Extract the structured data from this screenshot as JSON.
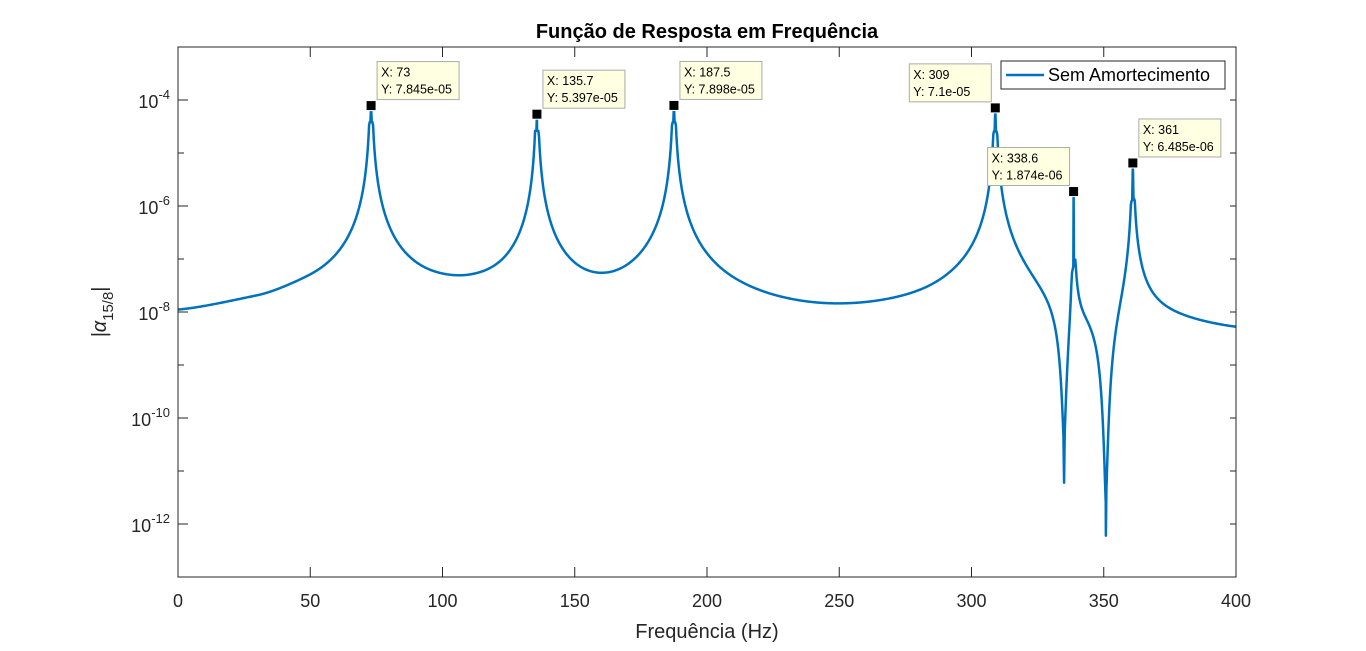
{
  "chart_data": {
    "type": "line",
    "title": "Função de Resposta em Frequência",
    "xlabel": "Frequência (Hz)",
    "ylabel": "|α15/8|",
    "ylabel_base": "|α",
    "ylabel_sub": "15/8",
    "ylabel_end": "|",
    "xscale": "linear",
    "yscale": "log",
    "xlim": [
      0,
      400
    ],
    "ylim_log10": [
      -13,
      -3
    ],
    "x_ticks": [
      0,
      50,
      100,
      150,
      200,
      250,
      300,
      350,
      400
    ],
    "y_ticks": [
      {
        "value": 1e-12,
        "base": "10",
        "exp": "-12"
      },
      {
        "value": 1e-10,
        "base": "10",
        "exp": "-10"
      },
      {
        "value": 1e-08,
        "base": "10",
        "exp": "-8"
      },
      {
        "value": 1e-06,
        "base": "10",
        "exp": "-6"
      },
      {
        "value": 0.0001,
        "base": "10",
        "exp": "-4"
      }
    ],
    "grid": false,
    "legend_position": "top-right",
    "series": [
      {
        "name": "Sem Amortecimento",
        "color": "#0072BD",
        "resonances": [
          {
            "x": 73,
            "y": 7.845e-05,
            "width": 0.7
          },
          {
            "x": 135.7,
            "y": 5.397e-05,
            "width": 0.7
          },
          {
            "x": 187.5,
            "y": 7.898e-05,
            "width": 0.7
          },
          {
            "x": 309,
            "y": 7.1e-05,
            "width": 0.7
          },
          {
            "x": 338.6,
            "y": 1.874e-06,
            "width": 0.7
          },
          {
            "x": 361,
            "y": 6.485e-06,
            "width": 0.7
          }
        ],
        "antiresonances": [
          {
            "x": 335,
            "y": 6e-12
          },
          {
            "x": 350.8,
            "y": 6e-13
          }
        ],
        "baseline": [
          {
            "x": 0,
            "y": 6.2e-09
          },
          {
            "x": 30,
            "y": 8.5e-09
          },
          {
            "x": 50,
            "y": 1.3e-08
          },
          {
            "x": 100,
            "y": 1.5e-08
          },
          {
            "x": 110,
            "y": 1.45e-08
          },
          {
            "x": 160,
            "y": 5.5e-09
          },
          {
            "x": 165,
            "y": 5.2e-09
          },
          {
            "x": 200,
            "y": 4.3e-09
          },
          {
            "x": 237,
            "y": 3.7e-09
          },
          {
            "x": 280,
            "y": 5e-09
          },
          {
            "x": 320,
            "y": 1.2e-08
          },
          {
            "x": 400,
            "y": 2e-09
          }
        ]
      }
    ],
    "datatips": [
      {
        "x_text": "X: 73",
        "y_text": "Y: 7.845e-05",
        "x": 73,
        "y": 7.845e-05,
        "side": "right-above"
      },
      {
        "x_text": "X: 135.7",
        "y_text": "Y: 5.397e-05",
        "x": 135.7,
        "y": 5.397e-05,
        "side": "right-above"
      },
      {
        "x_text": "X: 187.5",
        "y_text": "Y: 7.898e-05",
        "x": 187.5,
        "y": 7.898e-05,
        "side": "right-above"
      },
      {
        "x_text": "X: 309",
        "y_text": "Y: 7.1e-05",
        "x": 309,
        "y": 7.1e-05,
        "side": "left-above"
      },
      {
        "x_text": "X: 338.6",
        "y_text": "Y: 1.874e-06",
        "x": 338.6,
        "y": 1.874e-06,
        "side": "left-above"
      },
      {
        "x_text": "X: 361",
        "y_text": "Y: 6.485e-06",
        "x": 361,
        "y": 6.485e-06,
        "side": "right-above"
      }
    ]
  }
}
